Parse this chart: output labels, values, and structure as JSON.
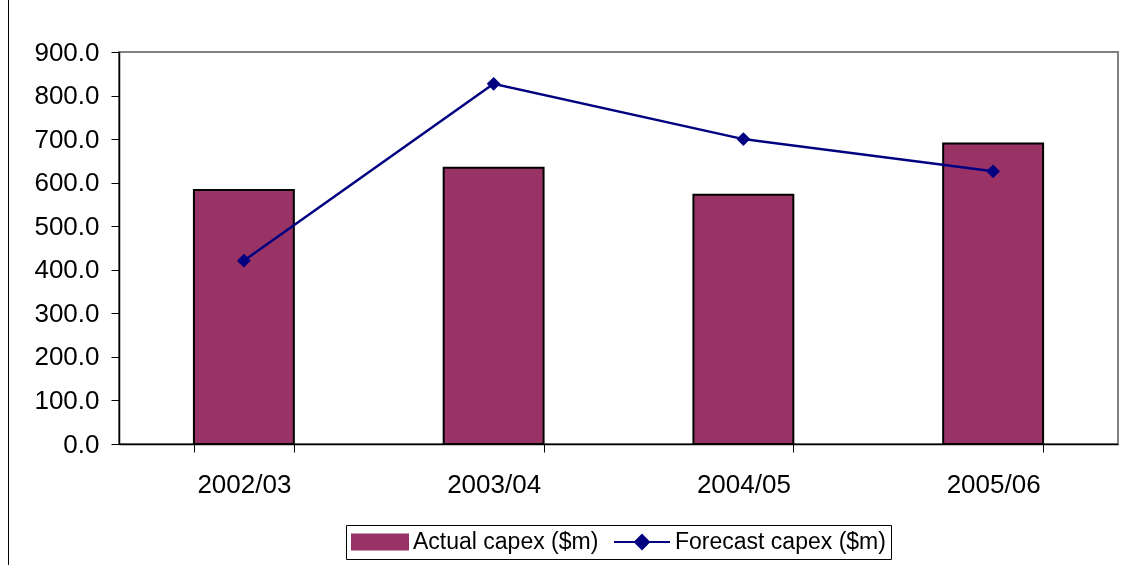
{
  "chart_data": {
    "type": "bar",
    "categories": [
      "2002/03",
      "2003/04",
      "2004/05",
      "2005/06"
    ],
    "series": [
      {
        "name": "Actual capex ($m)",
        "color": "#993366",
        "values": [
          583,
          634,
          572,
          690
        ]
      },
      {
        "name": "Forecast capex ($m)",
        "type": "line",
        "color": "#000080",
        "values": [
          421,
          827,
          700,
          626
        ]
      }
    ],
    "marker": "diamond",
    "legend": "bottom",
    "ylim": [
      0,
      900
    ],
    "yticks": [
      {
        "value": 0,
        "label": "0.0"
      },
      {
        "value": 100,
        "label": "100.0"
      },
      {
        "value": 200,
        "label": "200.0"
      },
      {
        "value": 300,
        "label": "300.0"
      },
      {
        "value": 400,
        "label": "400.0"
      },
      {
        "value": 500,
        "label": "500.0"
      },
      {
        "value": 600,
        "label": "600.0"
      },
      {
        "value": 700,
        "label": "700.0"
      },
      {
        "value": 800,
        "label": "800.0"
      },
      {
        "value": 900,
        "label": "900.0"
      }
    ]
  }
}
